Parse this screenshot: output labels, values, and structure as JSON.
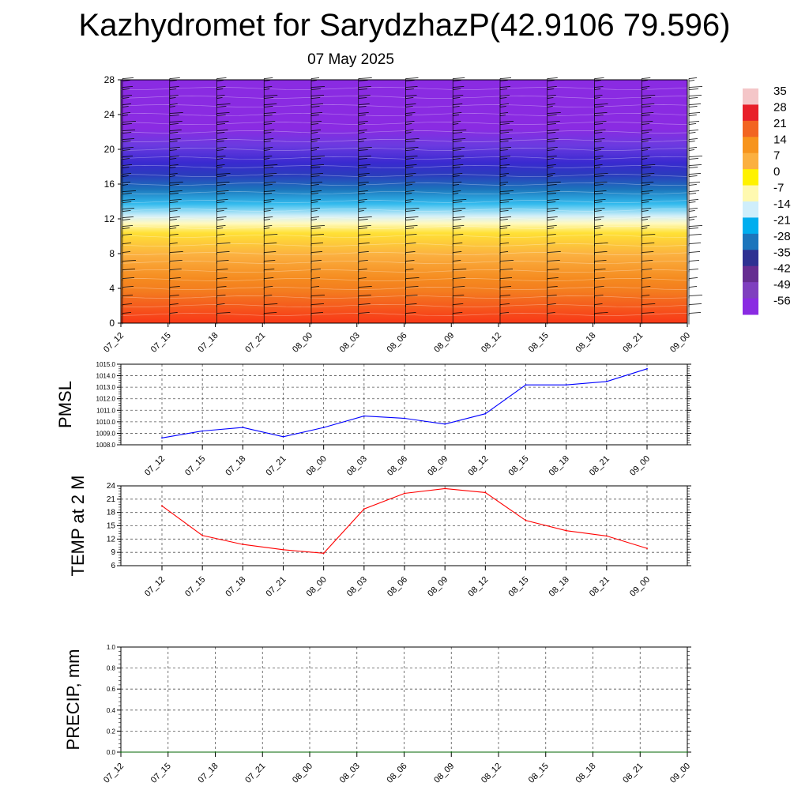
{
  "title": "Kazhydromet for SarydzhazP(42.9106 79.596)",
  "subtitle": "07 May 2025",
  "time_labels": [
    "07_12",
    "07_15",
    "07_18",
    "07_21",
    "08_00",
    "08_03",
    "08_06",
    "08_09",
    "08_12",
    "08_15",
    "08_18",
    "08_21",
    "09_00"
  ],
  "colors": {
    "pmsl_line": "#0000ff",
    "temp_line": "#ff0000",
    "precip_line": "#006400",
    "frame": "#000000",
    "grid": "#555555"
  },
  "chart_data": [
    {
      "type": "heatmap",
      "name": "vertical-cross-section",
      "title": "",
      "xlabel": "",
      "ylabel": "",
      "x": [
        "07_12",
        "07_15",
        "07_18",
        "07_21",
        "08_00",
        "08_03",
        "08_06",
        "08_09",
        "08_12",
        "08_15",
        "08_18",
        "08_21",
        "09_00"
      ],
      "ylim": [
        0,
        28
      ],
      "y_ticks": [
        "0",
        "4",
        "8",
        "12",
        "16",
        "20",
        "24",
        "28"
      ],
      "colorbar": {
        "labels": [
          "35",
          "28",
          "21",
          "14",
          "7",
          "0",
          "-7",
          "-14",
          "-21",
          "-28",
          "-35",
          "-42",
          "-49",
          "-56"
        ],
        "colors": [
          "#f4c6c8",
          "#e8202a",
          "#f26522",
          "#f7941d",
          "#fbb040",
          "#fff200",
          "#fff9b0",
          "#cfeefb",
          "#00aeef",
          "#1c75bc",
          "#2e3192",
          "#662d91",
          "#7f3fbf",
          "#8a2be2"
        ]
      },
      "wind_barbs": true
    },
    {
      "type": "line",
      "name": "PMSL",
      "ylabel": "PMSL",
      "x": [
        "07_12",
        "07_15",
        "07_18",
        "07_21",
        "08_00",
        "08_03",
        "08_06",
        "08_09",
        "08_12",
        "08_15",
        "08_18",
        "08_21",
        "09_00"
      ],
      "values": [
        1008.6,
        1009.2,
        1009.5,
        1008.7,
        1009.5,
        1010.5,
        1010.3,
        1009.8,
        1010.7,
        1013.2,
        1013.2,
        1013.5,
        1014.6
      ],
      "ylim": [
        1008.0,
        1015.0
      ],
      "y_ticks": [
        "1008.0",
        "1009.0",
        "1010.0",
        "1011.0",
        "1012.0",
        "1013.0",
        "1014.0",
        "1015.0"
      ],
      "grid": true
    },
    {
      "type": "line",
      "name": "TEMP at 2 M",
      "ylabel": "TEMP at 2 M",
      "x": [
        "07_12",
        "07_15",
        "07_18",
        "07_21",
        "08_00",
        "08_03",
        "08_06",
        "08_09",
        "08_12",
        "08_15",
        "08_18",
        "08_21",
        "09_00"
      ],
      "values": [
        19.5,
        12.8,
        10.8,
        9.6,
        8.8,
        18.8,
        22.3,
        23.4,
        22.5,
        16.2,
        13.9,
        12.7,
        9.9
      ],
      "ylim": [
        6,
        24
      ],
      "y_ticks": [
        "6",
        "9",
        "12",
        "15",
        "18",
        "21",
        "24"
      ],
      "grid": true
    },
    {
      "type": "line",
      "name": "PRECIP, mm",
      "ylabel": "PRECIP, mm",
      "x": [
        "07_12",
        "07_15",
        "07_18",
        "07_21",
        "08_00",
        "08_03",
        "08_06",
        "08_09",
        "08_12",
        "08_15",
        "08_18",
        "08_21",
        "09_00"
      ],
      "values": [
        0,
        0,
        0,
        0,
        0,
        0,
        0,
        0,
        0,
        0,
        0,
        0,
        0
      ],
      "ylim": [
        0.0,
        1.0
      ],
      "y_ticks": [
        "0.0",
        "0.2",
        "0.4",
        "0.6",
        "0.8",
        "1.0"
      ],
      "grid": true
    }
  ]
}
